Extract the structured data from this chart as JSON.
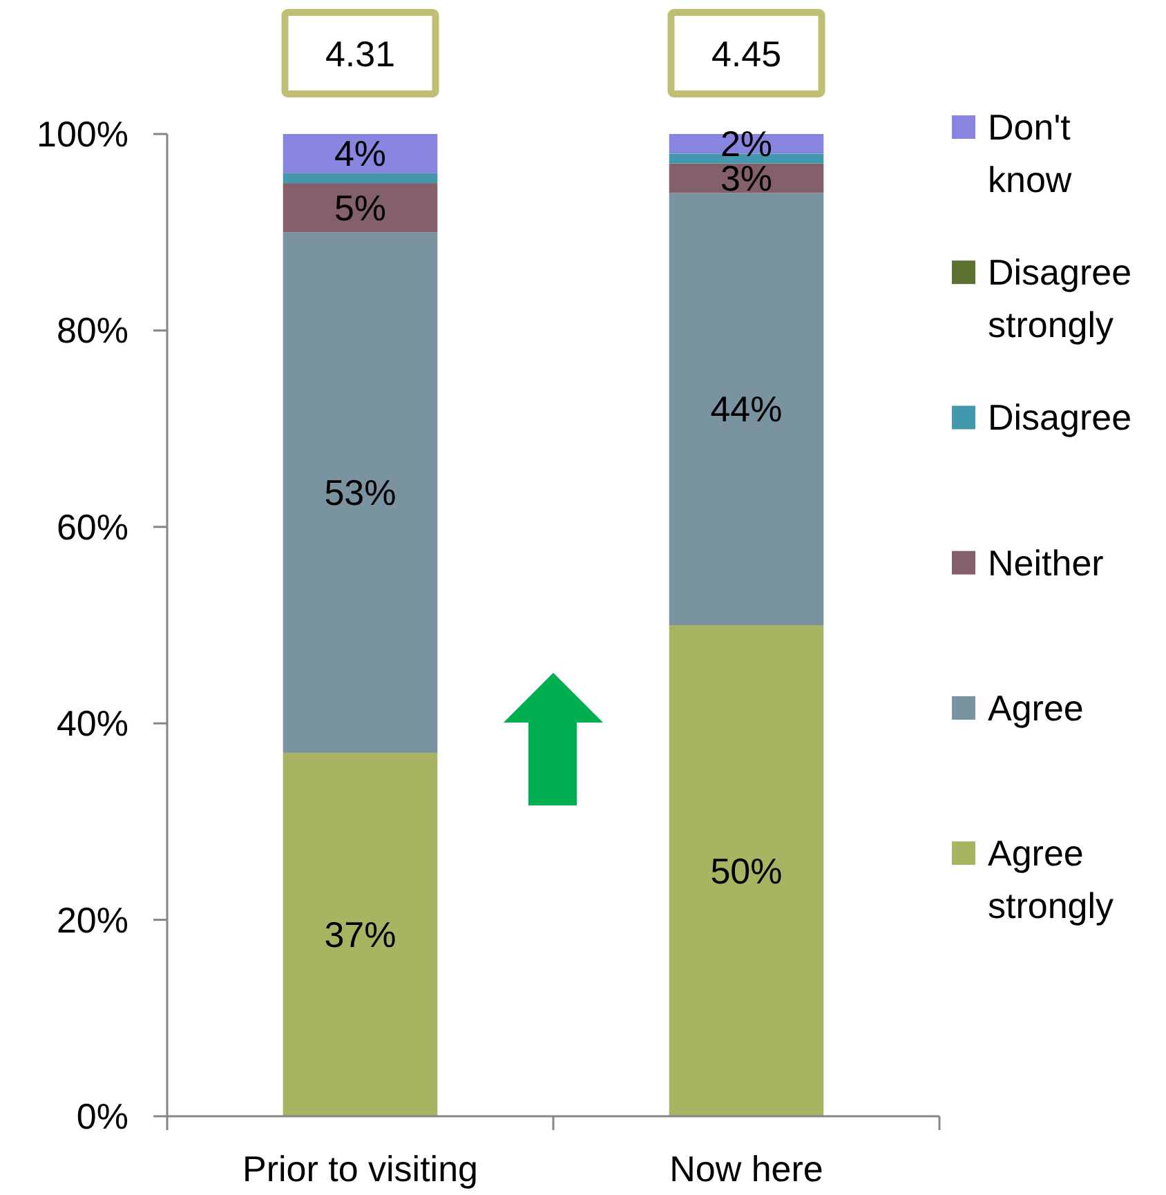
{
  "chart_data": {
    "type": "bar",
    "stacked": true,
    "legend": "right",
    "categories": [
      "Prior to visiting",
      "Now here"
    ],
    "series": [
      {
        "name": "Agree strongly",
        "color": "#a9b462",
        "values": [
          37,
          50
        ],
        "value_labels": [
          "37%",
          "50%"
        ]
      },
      {
        "name": "Agree",
        "color": "#7a93a1",
        "values": [
          53,
          44
        ],
        "value_labels": [
          "53%",
          "44%"
        ]
      },
      {
        "name": "Neither",
        "color": "#84606a",
        "values": [
          5,
          3
        ],
        "value_labels": [
          "5%",
          "3%"
        ]
      },
      {
        "name": "Disagree",
        "color": "#4299ad",
        "values": [
          1,
          1
        ],
        "value_labels": [
          null,
          null
        ]
      },
      {
        "name": "Disagree strongly",
        "color": "#5b7130",
        "values": [
          0,
          0
        ],
        "value_labels": [
          null,
          null
        ]
      },
      {
        "name": "Don't know",
        "color": "#8885e0",
        "values": [
          4,
          2
        ],
        "value_labels": [
          "4%",
          "2%"
        ]
      }
    ],
    "ylim": [
      0,
      100
    ],
    "yticks": [
      {
        "value": 0,
        "label": "0%"
      },
      {
        "value": 20,
        "label": "20%"
      },
      {
        "value": 40,
        "label": "40%"
      },
      {
        "value": 60,
        "label": "60%"
      },
      {
        "value": 80,
        "label": "80%"
      },
      {
        "value": 100,
        "label": "100%"
      }
    ],
    "annotations": [
      "4.31",
      "4.45"
    ]
  }
}
